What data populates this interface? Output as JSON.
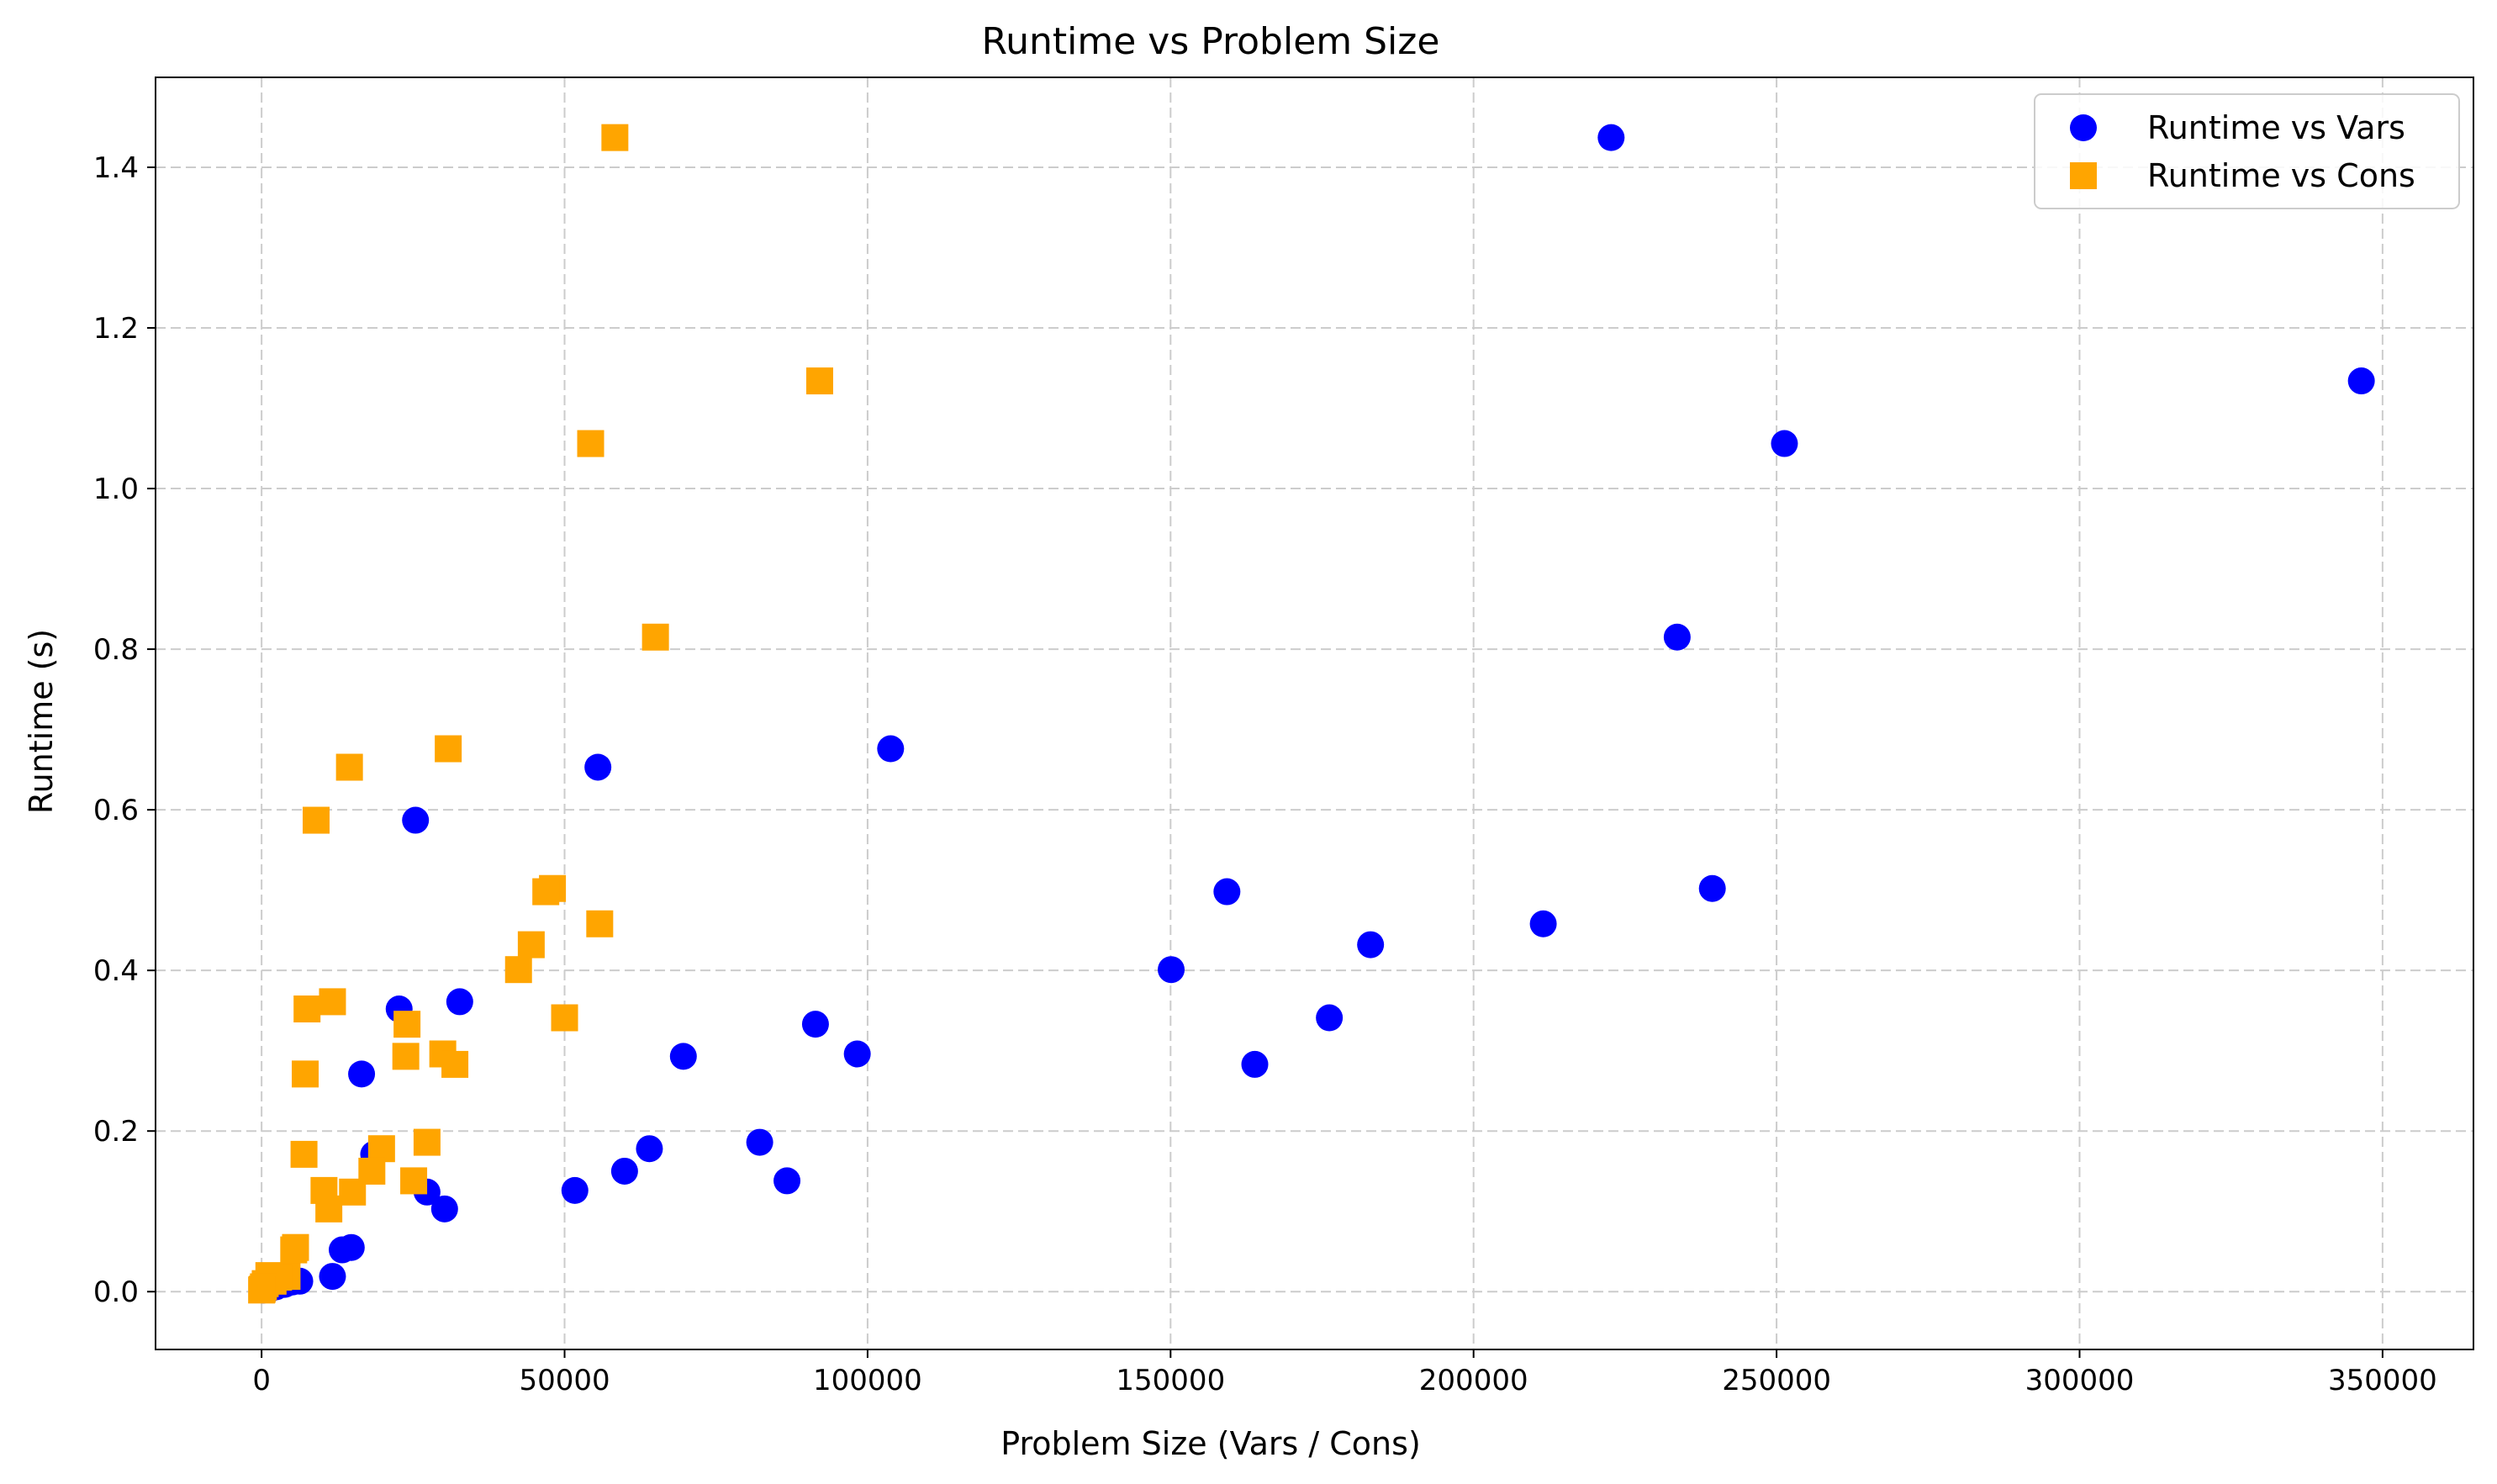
{
  "chart_data": {
    "type": "scatter",
    "title": "Runtime vs Problem Size",
    "xlabel": "Problem Size (Vars / Cons)",
    "ylabel": "Runtime (s)",
    "xlim": [
      -17500,
      365000
    ],
    "ylim": [
      -0.072,
      1.512
    ],
    "x_ticks": [
      0,
      50000,
      100000,
      150000,
      200000,
      250000,
      300000,
      350000
    ],
    "x_tick_labels": [
      "0",
      "50000",
      "100000",
      "150000",
      "200000",
      "250000",
      "300000",
      "350000"
    ],
    "y_ticks": [
      0.0,
      0.2,
      0.4,
      0.6,
      0.8,
      1.0,
      1.2,
      1.4
    ],
    "y_tick_labels": [
      "0.0",
      "0.2",
      "0.4",
      "0.6",
      "0.8",
      "1.0",
      "1.2",
      "1.4"
    ],
    "grid": true,
    "legend_position": "top-right",
    "series": [
      {
        "name": "Runtime vs Vars",
        "marker": "circle",
        "color": "#0000ff",
        "points": [
          [
            222700,
            1.437
          ],
          [
            346500,
            1.134
          ],
          [
            251300,
            1.056
          ],
          [
            233600,
            0.815
          ],
          [
            103800,
            0.676
          ],
          [
            55500,
            0.653
          ],
          [
            25400,
            0.587
          ],
          [
            239400,
            0.502
          ],
          [
            159300,
            0.498
          ],
          [
            211500,
            0.458
          ],
          [
            183000,
            0.432
          ],
          [
            150100,
            0.401
          ],
          [
            176200,
            0.341
          ],
          [
            32700,
            0.361
          ],
          [
            22700,
            0.352
          ],
          [
            91400,
            0.333
          ],
          [
            98300,
            0.296
          ],
          [
            69600,
            0.293
          ],
          [
            163900,
            0.283
          ],
          [
            16500,
            0.271
          ],
          [
            82200,
            0.186
          ],
          [
            64000,
            0.178
          ],
          [
            18500,
            0.171
          ],
          [
            59900,
            0.15
          ],
          [
            86700,
            0.138
          ],
          [
            51700,
            0.126
          ],
          [
            27300,
            0.124
          ],
          [
            30200,
            0.103
          ],
          [
            14800,
            0.055
          ],
          [
            13300,
            0.052
          ],
          [
            11700,
            0.019
          ],
          [
            6300,
            0.013
          ],
          [
            5100,
            0.012
          ],
          [
            3800,
            0.009
          ],
          [
            2400,
            0.006
          ],
          [
            1500,
            0.004
          ],
          [
            800,
            0.003
          ],
          [
            300,
            0.002
          ]
        ]
      },
      {
        "name": "Runtime vs Cons",
        "marker": "square",
        "color": "#ffa500",
        "points": [
          [
            58300,
            1.437
          ],
          [
            92100,
            1.134
          ],
          [
            54300,
            1.056
          ],
          [
            65000,
            0.815
          ],
          [
            30800,
            0.676
          ],
          [
            14500,
            0.653
          ],
          [
            9000,
            0.587
          ],
          [
            48000,
            0.502
          ],
          [
            46900,
            0.498
          ],
          [
            55800,
            0.458
          ],
          [
            44500,
            0.432
          ],
          [
            42400,
            0.401
          ],
          [
            11700,
            0.361
          ],
          [
            7500,
            0.352
          ],
          [
            50000,
            0.341
          ],
          [
            24000,
            0.333
          ],
          [
            29900,
            0.296
          ],
          [
            23800,
            0.293
          ],
          [
            31900,
            0.283
          ],
          [
            7200,
            0.271
          ],
          [
            27300,
            0.186
          ],
          [
            19800,
            0.178
          ],
          [
            7000,
            0.171
          ],
          [
            18200,
            0.15
          ],
          [
            25100,
            0.138
          ],
          [
            10300,
            0.126
          ],
          [
            15000,
            0.124
          ],
          [
            11100,
            0.103
          ],
          [
            5600,
            0.055
          ],
          [
            5300,
            0.052
          ],
          [
            4200,
            0.019
          ],
          [
            2800,
            0.018
          ],
          [
            1900,
            0.013
          ],
          [
            1200,
            0.02
          ],
          [
            600,
            0.01
          ],
          [
            300,
            0.006
          ],
          [
            100,
            0.003
          ],
          [
            0,
            0.002
          ]
        ]
      }
    ]
  }
}
